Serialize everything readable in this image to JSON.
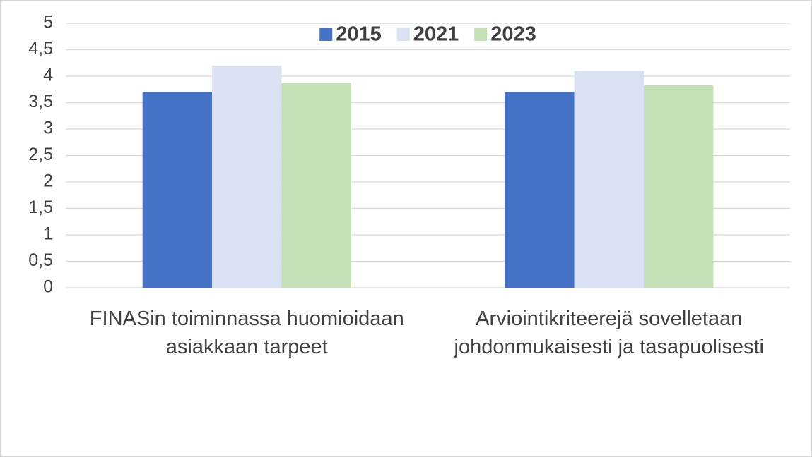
{
  "chart_data": {
    "type": "bar",
    "categories": [
      "FINASin toiminnassa huomioidaan asiakkaan tarpeet",
      "Arviointikriteerejä sovelletaan johdonmukaisesti ja tasapuolisesti"
    ],
    "series": [
      {
        "name": "2015",
        "color": "#4472c4",
        "values": [
          3.7,
          3.7
        ]
      },
      {
        "name": "2021",
        "color": "#dae3f3",
        "values": [
          4.2,
          4.1
        ]
      },
      {
        "name": "2023",
        "color": "#c5e0b4",
        "values": [
          3.87,
          3.83
        ]
      }
    ],
    "ylim": [
      0,
      5
    ],
    "yticks": [
      0,
      {
        "value": 0.5,
        "label": "0,5"
      },
      1,
      {
        "value": 1.5,
        "label": "1,5"
      },
      2,
      {
        "value": 2.5,
        "label": "2,5"
      },
      3,
      {
        "value": 3.5,
        "label": "3,5"
      },
      4,
      {
        "value": 4.5,
        "label": "4,5"
      },
      5
    ],
    "grid": true,
    "legend": "top"
  }
}
